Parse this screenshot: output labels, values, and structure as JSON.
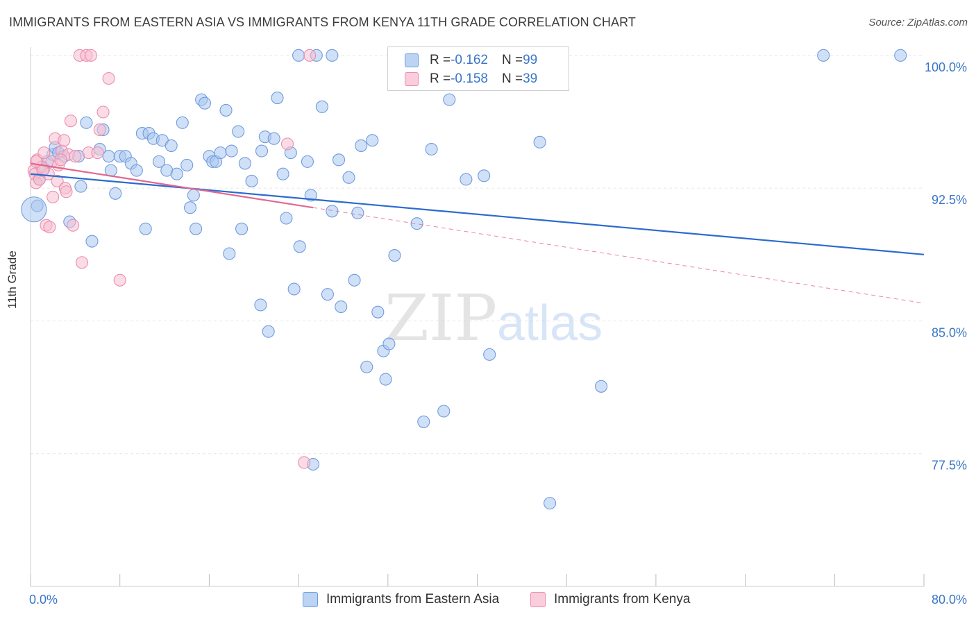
{
  "title": "IMMIGRANTS FROM EASTERN ASIA VS IMMIGRANTS FROM KENYA 11TH GRADE CORRELATION CHART",
  "source": "Source: ZipAtlas.com",
  "watermark": {
    "zip": "ZIP",
    "atlas": "atlas"
  },
  "colors": {
    "blue_fill": "#a9c7ef",
    "blue_stroke": "#6f9be0",
    "blue_line": "#2a6bcf",
    "pink_fill": "#f6bfd0",
    "pink_stroke": "#ec8db0",
    "pink_line": "#e3668f",
    "grid": "#e6e6e6",
    "axis_text": "#3a76c8"
  },
  "legend": {
    "rows": [
      {
        "r_label": "R = ",
        "r_value": "-0.162",
        "n_label": "N = ",
        "n_value": "99"
      },
      {
        "r_label": "R = ",
        "r_value": "-0.158",
        "n_label": "N = ",
        "n_value": "39"
      }
    ]
  },
  "chart_data": {
    "type": "scatter",
    "title": "IMMIGRANTS FROM EASTERN ASIA VS IMMIGRANTS FROM KENYA 11TH GRADE CORRELATION CHART",
    "xlabel": "",
    "ylabel": "11th Grade",
    "xlim": [
      0,
      80
    ],
    "ylim": [
      70.0,
      100.7
    ],
    "x_tick_labels": [
      "0.0%",
      "80.0%"
    ],
    "y_ticks": [
      77.5,
      85.0,
      92.5,
      100.0
    ],
    "y_tick_labels": [
      "77.5%",
      "85.0%",
      "92.5%",
      "100.0%"
    ],
    "grid": true,
    "legend_position": "top-center",
    "series": [
      {
        "name": "Immigrants from Eastern Asia",
        "color": "#a9c7ef",
        "trend": {
          "x0": 0,
          "y0": 93.3,
          "x1": 80,
          "y1": 88.75,
          "dashed_from": null
        },
        "points": [
          [
            0.6,
            91.5
          ],
          [
            0.8,
            93.0
          ],
          [
            1.2,
            93.6
          ],
          [
            1.5,
            94.0
          ],
          [
            2.0,
            94.4
          ],
          [
            2.2,
            94.8
          ],
          [
            2.5,
            94.5
          ],
          [
            3.0,
            94.3
          ],
          [
            4.3,
            94.3
          ],
          [
            4.5,
            92.6
          ],
          [
            3.5,
            90.6
          ],
          [
            5.5,
            89.5
          ],
          [
            5.0,
            96.2
          ],
          [
            6.5,
            95.8
          ],
          [
            6.2,
            94.7
          ],
          [
            7.0,
            94.3
          ],
          [
            7.2,
            93.5
          ],
          [
            7.6,
            92.2
          ],
          [
            8.0,
            94.3
          ],
          [
            8.5,
            94.3
          ],
          [
            9.0,
            93.9
          ],
          [
            9.5,
            93.5
          ],
          [
            10.0,
            95.6
          ],
          [
            10.3,
            90.2
          ],
          [
            10.6,
            95.6
          ],
          [
            11.0,
            95.3
          ],
          [
            11.5,
            94.0
          ],
          [
            11.8,
            95.2
          ],
          [
            12.2,
            93.5
          ],
          [
            12.6,
            94.9
          ],
          [
            13.1,
            93.3
          ],
          [
            13.6,
            96.2
          ],
          [
            14.0,
            93.8
          ],
          [
            14.3,
            91.4
          ],
          [
            14.6,
            92.1
          ],
          [
            14.8,
            90.2
          ],
          [
            15.3,
            97.5
          ],
          [
            15.6,
            97.3
          ],
          [
            16.0,
            94.3
          ],
          [
            16.3,
            94.0
          ],
          [
            16.6,
            94.0
          ],
          [
            17.0,
            94.5
          ],
          [
            17.5,
            96.9
          ],
          [
            17.8,
            88.8
          ],
          [
            18.0,
            94.6
          ],
          [
            18.6,
            95.7
          ],
          [
            18.9,
            90.2
          ],
          [
            19.2,
            93.9
          ],
          [
            19.8,
            92.9
          ],
          [
            20.6,
            85.9
          ],
          [
            20.7,
            94.6
          ],
          [
            21.0,
            95.4
          ],
          [
            21.3,
            84.4
          ],
          [
            21.8,
            95.3
          ],
          [
            22.1,
            97.6
          ],
          [
            22.6,
            93.3
          ],
          [
            22.9,
            90.8
          ],
          [
            23.3,
            94.5
          ],
          [
            23.6,
            86.8
          ],
          [
            24.1,
            89.2
          ],
          [
            24.8,
            94.0
          ],
          [
            25.1,
            92.1
          ],
          [
            25.3,
            76.9
          ],
          [
            25.6,
            100.0
          ],
          [
            26.1,
            97.1
          ],
          [
            26.6,
            86.5
          ],
          [
            27.0,
            91.2
          ],
          [
            27.6,
            94.1
          ],
          [
            27.8,
            85.8
          ],
          [
            28.5,
            93.1
          ],
          [
            29.0,
            87.3
          ],
          [
            29.3,
            91.1
          ],
          [
            29.6,
            94.9
          ],
          [
            30.1,
            82.4
          ],
          [
            30.6,
            95.2
          ],
          [
            31.1,
            85.5
          ],
          [
            31.6,
            83.3
          ],
          [
            31.8,
            81.7
          ],
          [
            32.1,
            83.7
          ],
          [
            32.6,
            88.7
          ],
          [
            34.6,
            90.5
          ],
          [
            35.2,
            79.3
          ],
          [
            35.9,
            94.7
          ],
          [
            36.1,
            100.0
          ],
          [
            37.0,
            79.9
          ],
          [
            37.5,
            97.5
          ],
          [
            38.1,
            100.0
          ],
          [
            39.0,
            93.0
          ],
          [
            40.5,
            100.0
          ],
          [
            40.6,
            93.2
          ],
          [
            41.1,
            83.1
          ],
          [
            45.6,
            95.1
          ],
          [
            51.1,
            81.3
          ],
          [
            71.0,
            100.0
          ],
          [
            77.9,
            100.0
          ],
          [
            46.5,
            74.7
          ],
          [
            24.0,
            100.0
          ],
          [
            27.0,
            100.0
          ],
          [
            33.5,
            100.0
          ]
        ],
        "big_points": [
          [
            0.3,
            91.3
          ]
        ]
      },
      {
        "name": "Immigrants from Kenya",
        "color": "#f6bfd0",
        "trend": {
          "x0": 0,
          "y0": 93.9,
          "x1": 80,
          "y1": 86.0,
          "dashed_from": 25.3
        },
        "points": [
          [
            0.3,
            93.5
          ],
          [
            0.4,
            93.3
          ],
          [
            0.5,
            92.8
          ],
          [
            0.6,
            94.1
          ],
          [
            0.8,
            93.0
          ],
          [
            1.0,
            93.7
          ],
          [
            1.2,
            94.5
          ],
          [
            1.4,
            90.4
          ],
          [
            1.6,
            93.3
          ],
          [
            1.7,
            90.3
          ],
          [
            1.9,
            94.0
          ],
          [
            2.0,
            92.0
          ],
          [
            2.2,
            95.3
          ],
          [
            2.4,
            92.9
          ],
          [
            2.5,
            93.8
          ],
          [
            2.8,
            94.6
          ],
          [
            3.0,
            95.2
          ],
          [
            3.1,
            92.5
          ],
          [
            3.2,
            92.3
          ],
          [
            3.4,
            94.4
          ],
          [
            3.6,
            96.3
          ],
          [
            3.8,
            90.4
          ],
          [
            4.0,
            94.3
          ],
          [
            4.4,
            100.0
          ],
          [
            4.6,
            88.3
          ],
          [
            5.0,
            100.0
          ],
          [
            5.2,
            94.5
          ],
          [
            5.4,
            100.0
          ],
          [
            6.0,
            94.5
          ],
          [
            6.2,
            95.8
          ],
          [
            6.5,
            96.8
          ],
          [
            7.0,
            98.7
          ],
          [
            8.0,
            87.3
          ],
          [
            23.0,
            95.0
          ],
          [
            24.5,
            77.0
          ],
          [
            25.0,
            100.0
          ],
          [
            0.5,
            94.0
          ],
          [
            1.1,
            93.5
          ],
          [
            2.7,
            94.1
          ]
        ],
        "big_points": []
      }
    ]
  }
}
